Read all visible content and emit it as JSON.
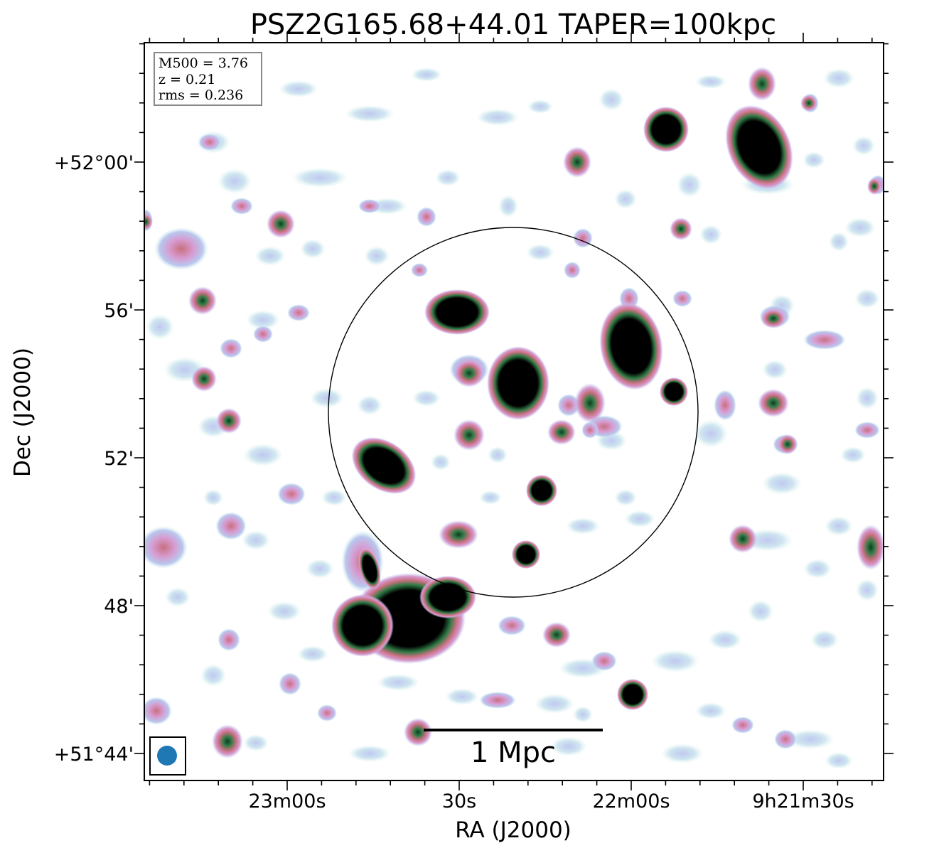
{
  "chart_data": {
    "type": "heatmap",
    "title": "PSZ2G165.68+44.01 TAPER=100kpc",
    "xlabel": "RA (J2000)",
    "ylabel": "Dec (J2000)",
    "x_ticks": [
      "23m00s",
      "30s",
      "22m00s",
      "9h21m30s"
    ],
    "y_ticks": [
      "+52°00'",
      "56'",
      "52'",
      "48'",
      "+51°44'"
    ],
    "info": {
      "m500": "M500 = 3.76",
      "z": "z = 0.21",
      "rms": "rms = 0.236"
    },
    "scalebar_label": "1 Mpc",
    "colormap": [
      "#ffffff",
      "#d6f0ee",
      "#b8c8ee",
      "#d79bd0",
      "#c8707f",
      "#2e7a44",
      "#000000"
    ],
    "circle_color": "#000000",
    "beam_color": "#1f77b4"
  }
}
